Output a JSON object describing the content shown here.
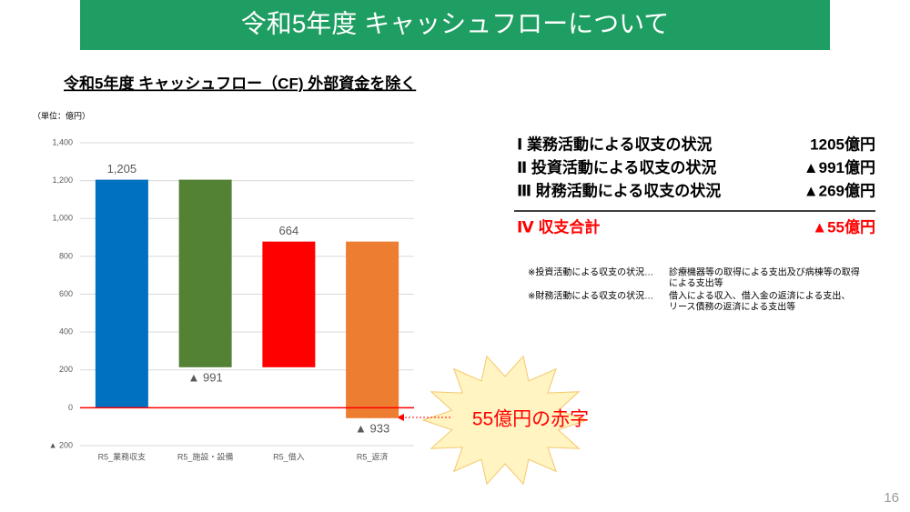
{
  "slide": {
    "title": "令和5年度 キャッシュフローについて",
    "page": "16"
  },
  "chart_data": {
    "type": "waterfall",
    "title": "令和5年度 キャッシュフロー（CF) 外部資金を除く",
    "unit": "（単位：億円）",
    "categories": [
      "R5_業務収支",
      "R5_施設・設備",
      "R5_借入",
      "R5_返済"
    ],
    "values": [
      1205,
      -991,
      664,
      -933
    ],
    "value_labels": [
      "1,205",
      "▲ 991",
      "664",
      "▲ 933"
    ],
    "colors": [
      "#0070c0",
      "#548235",
      "#ff0000",
      "#ed7d31"
    ],
    "ylim": [
      -200,
      1400
    ],
    "yticks": [
      {
        "value": -200,
        "label": "▲ 200"
      },
      0,
      200,
      400,
      600,
      800,
      {
        "value": 1000,
        "label": "1,000"
      },
      {
        "value": 1200,
        "label": "1,200"
      },
      {
        "value": 1400,
        "label": "1,400"
      }
    ],
    "grid": true,
    "zero_line_color": "#ff0000"
  },
  "summary": {
    "rows": [
      {
        "label": "Ⅰ 業務活動による収支の状況",
        "value": "1205億円"
      },
      {
        "label": "Ⅱ 投資活動による収支の状況",
        "value": "▲991億円"
      },
      {
        "label": "Ⅲ 財務活動による収支の状況",
        "value": "▲269億円"
      }
    ],
    "total": {
      "label": "Ⅳ 収支合計",
      "value": "▲55億円"
    }
  },
  "notes": [
    {
      "label": "※投資活動による収支の状況…",
      "lines": [
        "診療機器等の取得による支出及び病棟等の取得",
        "による支出等"
      ]
    },
    {
      "label": "※財務活動による収支の状況…",
      "lines": [
        "借入による収入、借入金の返済による支出、",
        "リース債務の返済による支出等"
      ]
    }
  ],
  "annotation": "55億円の赤字"
}
